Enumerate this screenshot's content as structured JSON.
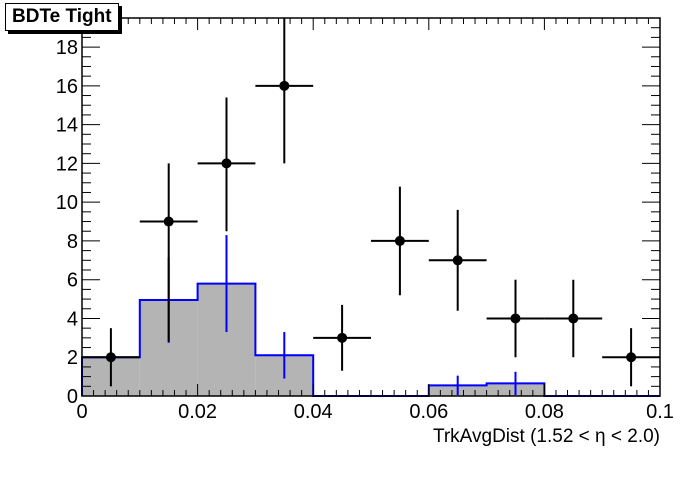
{
  "chart_data": {
    "type": "histogram",
    "title": "BDTe Tight",
    "xlabel": "TrkAvgDist (1.52 <  η < 2.0)",
    "ylabel": "",
    "xlim": [
      0,
      0.1
    ],
    "ylim": [
      0,
      19.5
    ],
    "x_ticks": [
      "0",
      "0.02",
      "0.04",
      "0.06",
      "0.08",
      "0.1"
    ],
    "y_ticks": [
      "0",
      "2",
      "4",
      "6",
      "8",
      "10",
      "12",
      "14",
      "16",
      "18"
    ],
    "bin_edges": [
      0,
      0.01,
      0.02,
      0.03,
      0.04,
      0.05,
      0.06,
      0.07,
      0.08,
      0.09,
      0.1
    ],
    "series": [
      {
        "kind": "filled-histogram",
        "values": [
          2.0,
          4.95,
          5.8,
          2.1,
          0,
          0,
          0.55,
          0.65,
          0,
          0
        ],
        "errors": [
          null,
          2.2,
          2.5,
          1.2,
          null,
          null,
          0.5,
          0.6,
          null,
          null
        ],
        "fill_color": "#b4b4b4",
        "line_color": "#0000ff"
      },
      {
        "kind": "data-points",
        "x": [
          0.005,
          0.015,
          0.025,
          0.035,
          0.045,
          0.055,
          0.065,
          0.075,
          0.085,
          0.095
        ],
        "values": [
          2,
          9,
          12,
          16,
          3,
          8,
          7,
          4,
          4,
          2
        ],
        "err_low": [
          1.5,
          6.2,
          3.5,
          4.0,
          1.7,
          2.8,
          2.6,
          2.0,
          2.0,
          1.5
        ],
        "err_high": [
          1.5,
          3.0,
          3.4,
          4.0,
          1.7,
          2.8,
          2.6,
          2.0,
          2.0,
          1.5
        ],
        "color": "#000000"
      }
    ],
    "grid": false,
    "legend": "none"
  }
}
